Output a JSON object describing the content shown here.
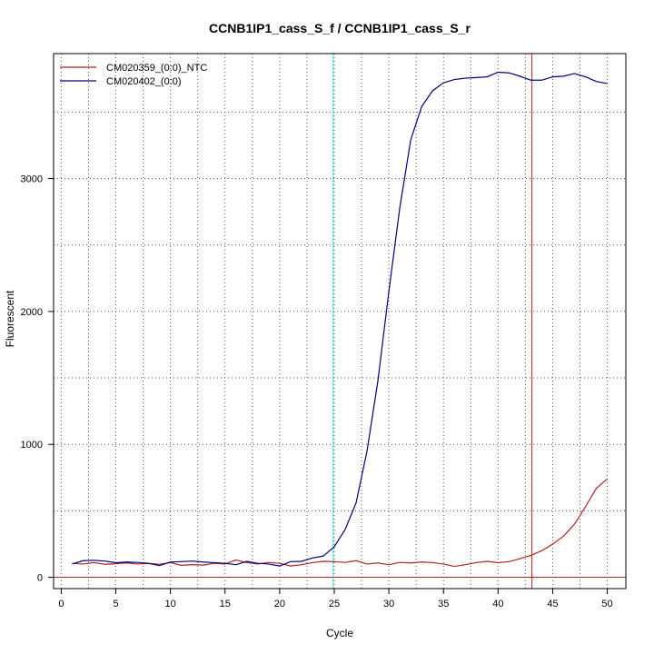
{
  "chart_data": {
    "type": "line",
    "title": "CCNB1IP1_cass_S_f / CCNB1IP1_cass_S_r",
    "xlabel": "Cycle",
    "ylabel": "Fluorescent",
    "xlim": [
      -0.7,
      51.7
    ],
    "ylim": [
      -85,
      3940
    ],
    "x_ticks": [
      0,
      5,
      10,
      15,
      20,
      25,
      30,
      35,
      40,
      45,
      50
    ],
    "y_ticks": [
      0,
      1000,
      2000,
      3000
    ],
    "grid": true,
    "grid_style": "dotted",
    "legend_position": "top-left",
    "threshold": {
      "value": 0,
      "color": "#b22222"
    },
    "cycle_markers": [
      {
        "x": 24.9,
        "color": "#40e0d0"
      },
      {
        "x": 43.1,
        "color": "#b22222"
      }
    ],
    "series": [
      {
        "name": "CM020359_(0:0)_NTC",
        "color": "#b22222",
        "x": [
          1,
          2,
          3,
          4,
          5,
          6,
          7,
          8,
          9,
          10,
          11,
          12,
          13,
          14,
          15,
          16,
          17,
          18,
          19,
          20,
          21,
          22,
          23,
          24,
          25,
          26,
          27,
          28,
          29,
          30,
          31,
          32,
          33,
          34,
          35,
          36,
          37,
          38,
          39,
          40,
          41,
          42,
          43,
          44,
          45,
          46,
          47,
          48,
          49,
          50
        ],
        "y": [
          105,
          100,
          110,
          98,
          102,
          108,
          100,
          104,
          98,
          110,
          90,
          95,
          92,
          105,
          100,
          130,
          110,
          100,
          112,
          105,
          85,
          95,
          110,
          120,
          118,
          112,
          125,
          100,
          108,
          95,
          112,
          108,
          115,
          110,
          100,
          82,
          95,
          110,
          120,
          110,
          118,
          140,
          165,
          200,
          250,
          310,
          400,
          530,
          670,
          740
        ]
      },
      {
        "name": "CM020402_(0:0)",
        "color": "#000080",
        "x": [
          1,
          2,
          3,
          4,
          5,
          6,
          7,
          8,
          9,
          10,
          11,
          12,
          13,
          14,
          15,
          16,
          17,
          18,
          19,
          20,
          21,
          22,
          23,
          24,
          25,
          26,
          27,
          28,
          29,
          30,
          31,
          32,
          33,
          34,
          35,
          36,
          37,
          38,
          39,
          40,
          41,
          42,
          43,
          44,
          45,
          46,
          47,
          48,
          49,
          50
        ],
        "y": [
          100,
          125,
          128,
          122,
          110,
          115,
          112,
          105,
          88,
          115,
          118,
          122,
          115,
          110,
          105,
          95,
          120,
          105,
          100,
          85,
          118,
          120,
          145,
          160,
          230,
          360,
          560,
          950,
          1480,
          2150,
          2780,
          3290,
          3540,
          3660,
          3720,
          3745,
          3755,
          3760,
          3765,
          3800,
          3795,
          3770,
          3740,
          3740,
          3765,
          3770,
          3790,
          3765,
          3730,
          3715
        ]
      }
    ]
  }
}
